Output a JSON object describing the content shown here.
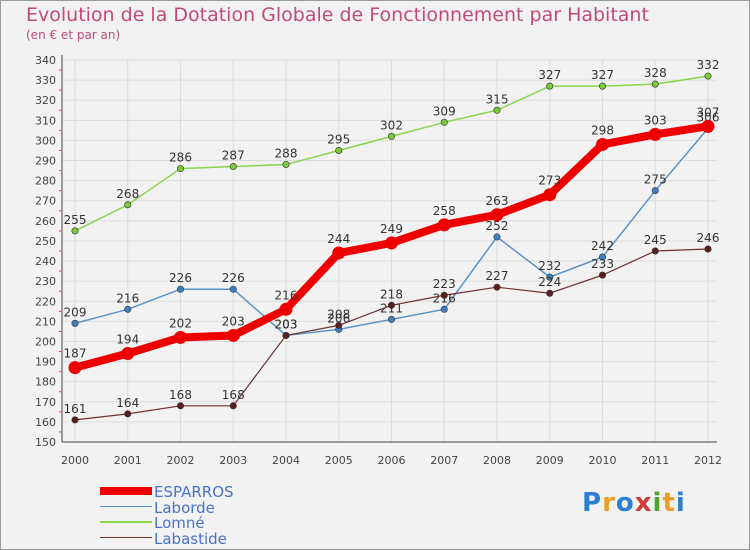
{
  "header": {
    "title": "Evolution de la Dotation Globale de Fonctionnement par Habitant",
    "subtitle": "(en € et par an)"
  },
  "logo": {
    "text": "Proxiti",
    "colors": [
      "#2c7fcf",
      "#e8a02a",
      "#2c7fcf",
      "#d23c3c",
      "#5aa02c",
      "#e8a02a",
      "#2c7fcf"
    ]
  },
  "chart_data": {
    "type": "line",
    "title": "Evolution de la Dotation Globale de Fonctionnement par Habitant",
    "subtitle": "(en € et par an)",
    "xlabel": "",
    "ylabel": "",
    "ylim": [
      150,
      340
    ],
    "ytick_step": 10,
    "grid": true,
    "legend_position": "bottom-left",
    "categories": [
      "2000",
      "2001",
      "2002",
      "2003",
      "2004",
      "2005",
      "2006",
      "2007",
      "2008",
      "2009",
      "2010",
      "2011",
      "2012"
    ],
    "series": [
      {
        "name": "Lomné",
        "color": "#8cd44a",
        "marker": "#7ac83c",
        "width": 1.5,
        "values": [
          255,
          268,
          286,
          287,
          288,
          295,
          302,
          309,
          315,
          327,
          327,
          328,
          332
        ]
      },
      {
        "name": "Laborde",
        "color": "#5b93c9",
        "marker": "#3f7fc0",
        "width": 1.5,
        "values": [
          209,
          216,
          226,
          226,
          203,
          206,
          211,
          216,
          252,
          232,
          242,
          275,
          306
        ]
      },
      {
        "name": "Labastide",
        "color": "#6e2f2f",
        "marker": "#5a1f1f",
        "width": 1.2,
        "values": [
          161,
          164,
          168,
          168,
          203,
          208,
          218,
          223,
          227,
          224,
          233,
          245,
          246
        ]
      },
      {
        "name": "ESPARROS",
        "color": "#ee0000",
        "marker": "#ee0000",
        "width": 8,
        "values": [
          187,
          194,
          202,
          203,
          216,
          244,
          249,
          258,
          263,
          273,
          298,
          303,
          307
        ]
      }
    ]
  }
}
